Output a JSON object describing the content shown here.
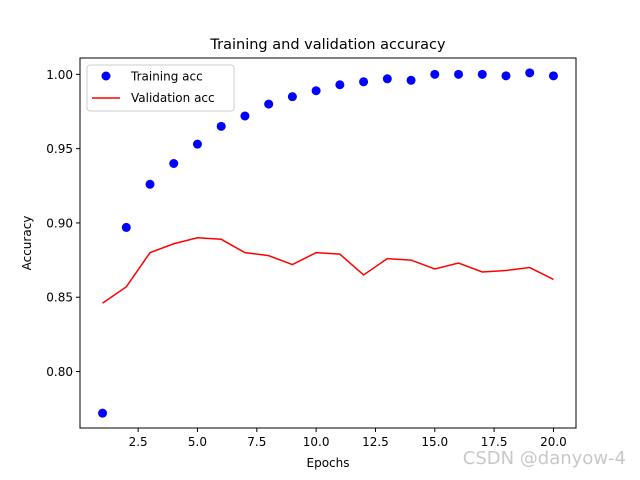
{
  "chart_data": {
    "type": "scatter+line",
    "title": "Training and validation accuracy",
    "xlabel": "Epochs",
    "ylabel": "Accuracy",
    "xlim": [
      0.05,
      20.95
    ],
    "ylim": [
      0.762,
      1.011
    ],
    "xticks": [
      2.5,
      5.0,
      7.5,
      10.0,
      12.5,
      15.0,
      17.5,
      20.0
    ],
    "xtick_labels": [
      "2.5",
      "5.0",
      "7.5",
      "10.0",
      "12.5",
      "15.0",
      "17.5",
      "20.0"
    ],
    "yticks": [
      0.8,
      0.85,
      0.9,
      0.95,
      1.0
    ],
    "ytick_labels": [
      "0.80",
      "0.85",
      "0.90",
      "0.95",
      "1.00"
    ],
    "grid": false,
    "legend_position": "upper-left",
    "series": [
      {
        "name": "Training acc",
        "style": "points",
        "color": "#0000ff",
        "x": [
          1,
          2,
          3,
          4,
          5,
          6,
          7,
          8,
          9,
          10,
          11,
          12,
          13,
          14,
          15,
          16,
          17,
          18,
          19,
          20
        ],
        "values": [
          0.772,
          0.897,
          0.926,
          0.94,
          0.953,
          0.965,
          0.972,
          0.98,
          0.985,
          0.989,
          0.993,
          0.995,
          0.997,
          0.996,
          1.0,
          1.0,
          1.0,
          0.999,
          1.001,
          0.999
        ]
      },
      {
        "name": "Validation acc",
        "style": "line",
        "color": "#ff0000",
        "x": [
          1,
          2,
          3,
          4,
          5,
          6,
          7,
          8,
          9,
          10,
          11,
          12,
          13,
          14,
          15,
          16,
          17,
          18,
          19,
          20
        ],
        "values": [
          0.846,
          0.857,
          0.88,
          0.886,
          0.89,
          0.889,
          0.88,
          0.878,
          0.872,
          0.88,
          0.879,
          0.865,
          0.876,
          0.875,
          0.869,
          0.873,
          0.867,
          0.868,
          0.87,
          0.862
        ]
      }
    ]
  },
  "watermark": "CSDN @danyow-4"
}
